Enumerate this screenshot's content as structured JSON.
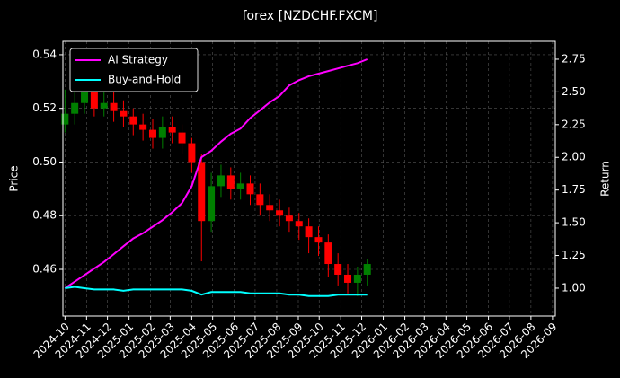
{
  "chart_data": {
    "type": "candlestick",
    "title": "forex [NZDCHF.FXCM]",
    "ylabel": "Price",
    "y2label": "Return",
    "x": [
      "2024-10-01",
      "2024-10-15",
      "2024-10-29",
      "2024-11-12",
      "2024-11-26",
      "2024-12-10",
      "2024-12-24",
      "2025-01-07",
      "2025-01-21",
      "2025-02-04",
      "2025-02-18",
      "2025-03-04",
      "2025-03-18",
      "2025-04-01",
      "2025-04-15",
      "2025-04-29",
      "2025-05-13",
      "2025-05-27",
      "2025-06-10",
      "2025-06-24",
      "2025-07-08",
      "2025-07-22",
      "2025-08-05",
      "2025-08-19",
      "2025-09-02",
      "2025-09-16",
      "2025-09-30",
      "2025-10-14",
      "2025-10-28",
      "2025-11-11",
      "2025-11-25",
      "2025-12-09"
    ],
    "open": [
      0.514,
      0.518,
      0.522,
      0.527,
      0.52,
      0.522,
      0.519,
      0.517,
      0.514,
      0.512,
      0.509,
      0.513,
      0.511,
      0.507,
      0.5,
      0.478,
      0.491,
      0.495,
      0.49,
      0.492,
      0.488,
      0.484,
      0.482,
      0.48,
      0.478,
      0.476,
      0.472,
      0.47,
      0.462,
      0.458,
      0.455,
      0.458
    ],
    "high": [
      0.527,
      0.53,
      0.531,
      0.53,
      0.526,
      0.526,
      0.523,
      0.52,
      0.518,
      0.516,
      0.517,
      0.517,
      0.514,
      0.509,
      0.503,
      0.496,
      0.499,
      0.498,
      0.496,
      0.495,
      0.492,
      0.488,
      0.486,
      0.483,
      0.481,
      0.479,
      0.476,
      0.473,
      0.466,
      0.462,
      0.461,
      0.464
    ],
    "low": [
      0.511,
      0.514,
      0.518,
      0.517,
      0.517,
      0.515,
      0.513,
      0.51,
      0.508,
      0.505,
      0.505,
      0.507,
      0.503,
      0.496,
      0.463,
      0.474,
      0.487,
      0.486,
      0.486,
      0.484,
      0.48,
      0.478,
      0.476,
      0.474,
      0.471,
      0.466,
      0.465,
      0.457,
      0.454,
      0.451,
      0.45,
      0.454
    ],
    "close": [
      0.518,
      0.522,
      0.527,
      0.52,
      0.522,
      0.519,
      0.517,
      0.514,
      0.512,
      0.509,
      0.513,
      0.511,
      0.507,
      0.5,
      0.478,
      0.491,
      0.495,
      0.49,
      0.492,
      0.488,
      0.484,
      0.482,
      0.48,
      0.478,
      0.476,
      0.472,
      0.47,
      0.462,
      0.458,
      0.455,
      0.458,
      0.462
    ],
    "up_color": "#008000",
    "down_color": "#ff0000",
    "series": [
      {
        "name": "AI Strategy",
        "color": "#ff00ff",
        "axis": "y2",
        "values": [
          1.0,
          1.05,
          1.1,
          1.15,
          1.2,
          1.26,
          1.32,
          1.38,
          1.42,
          1.47,
          1.52,
          1.58,
          1.65,
          1.78,
          2.0,
          2.05,
          2.12,
          2.18,
          2.22,
          2.3,
          2.36,
          2.42,
          2.47,
          2.55,
          2.59,
          2.62,
          2.64,
          2.66,
          2.68,
          2.7,
          2.72,
          2.75
        ]
      },
      {
        "name": "Buy-and-Hold",
        "color": "#00ffff",
        "axis": "y2",
        "values": [
          1.0,
          1.01,
          1.0,
          0.99,
          0.99,
          0.99,
          0.98,
          0.99,
          0.99,
          0.99,
          0.99,
          0.99,
          0.99,
          0.98,
          0.95,
          0.97,
          0.97,
          0.97,
          0.97,
          0.96,
          0.96,
          0.96,
          0.96,
          0.95,
          0.95,
          0.94,
          0.94,
          0.94,
          0.95,
          0.95,
          0.95,
          0.95
        ]
      }
    ],
    "xlim": [
      "2024-09-28",
      "2026-09-05"
    ],
    "xticks": [
      "2024-10",
      "2024-11",
      "2024-12",
      "2025-01",
      "2025-02",
      "2025-03",
      "2025-04",
      "2025-05",
      "2025-06",
      "2025-07",
      "2025-08",
      "2025-09",
      "2025-10",
      "2025-11",
      "2025-12",
      "2026-01",
      "2026-02",
      "2026-03",
      "2026-04",
      "2026-05",
      "2026-06",
      "2026-07",
      "2026-08",
      "2026-09"
    ],
    "ylim": [
      0.4426,
      0.545
    ],
    "yticks": [
      0.46,
      0.48,
      {
        "value": 0.5,
        "label": "0.50"
      },
      0.52,
      0.54
    ],
    "y2lim": [
      0.787,
      2.887
    ],
    "y2ticks": [
      {
        "value": 1,
        "label": "1.00"
      },
      1.25,
      {
        "value": 1.5,
        "label": "1.50"
      },
      1.75,
      {
        "value": 2,
        "label": "2.00"
      },
      2.25,
      {
        "value": 2.5,
        "label": "2.50"
      },
      2.75
    ],
    "grid": true,
    "legend": "upper left"
  }
}
